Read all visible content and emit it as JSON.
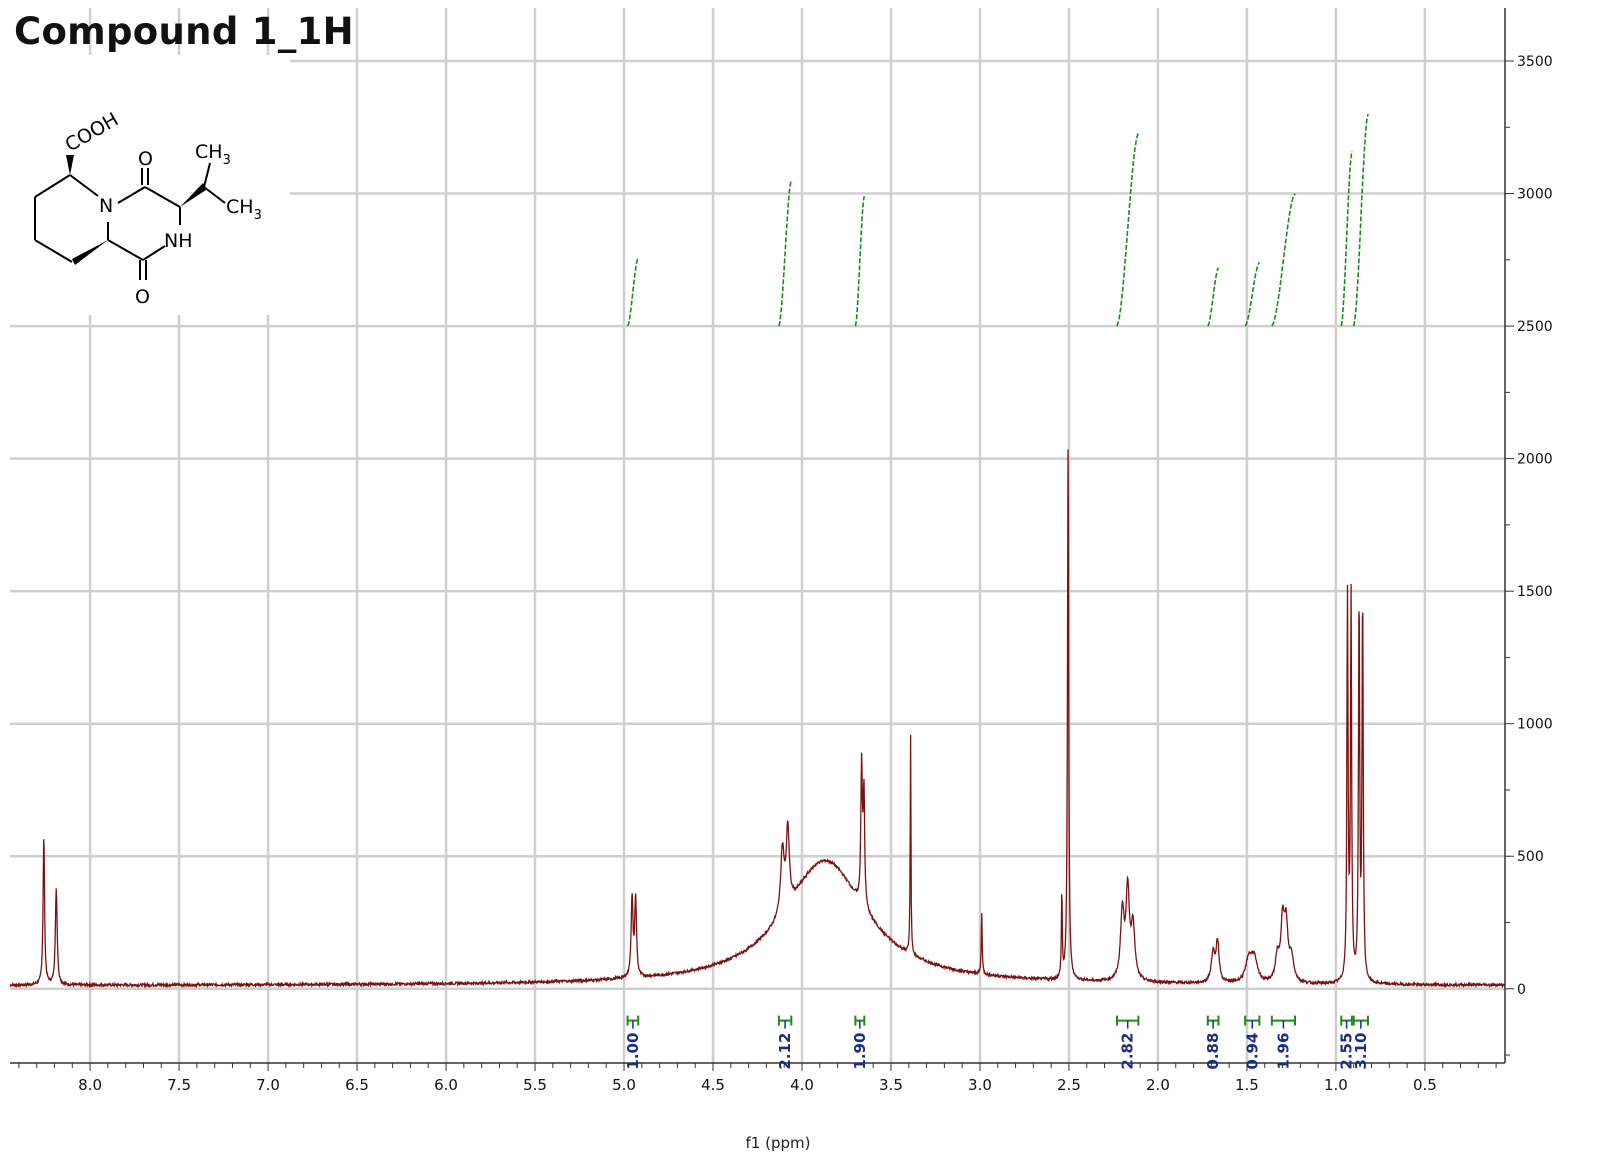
{
  "title": "Compound 1_1H",
  "structure_labels": {
    "acid": "COOH",
    "n": "N",
    "nh": "NH",
    "o_top": "O",
    "o_bottom": "O",
    "ch3_a": "CH",
    "ch3_b": "CH",
    "sub3": "3"
  },
  "colors": {
    "spectrum": "#7a1212",
    "integral": "#1e8a1e",
    "integral_label": "#1a2b8c",
    "grid": "#cfcfcf",
    "axis": "#333333"
  },
  "chart_data": {
    "type": "line",
    "title": "Compound 1_1H",
    "xlabel": "f1 (ppm)",
    "ylabel": "",
    "xlim": [
      8.45,
      0.05
    ],
    "ylim": [
      -280,
      3700
    ],
    "x_reversed": true,
    "grid": true,
    "xticks": [
      "8.0",
      "7.5",
      "7.0",
      "6.5",
      "6.0",
      "5.5",
      "5.0",
      "4.5",
      "4.0",
      "3.5",
      "3.0",
      "2.5",
      "2.0",
      "1.5",
      "1.0",
      "0.5"
    ],
    "yticks": [
      "3500",
      "3000",
      "2500",
      "2000",
      "1500",
      "1000",
      "500",
      "0"
    ],
    "series": [
      {
        "baseline": 12,
        "peaks": [
          {
            "ppm": 8.26,
            "height": 560,
            "width": 0.005
          },
          {
            "ppm": 8.19,
            "height": 360,
            "width": 0.006
          },
          {
            "ppm": 4.955,
            "height": 300,
            "width": 0.006
          },
          {
            "ppm": 4.935,
            "height": 295,
            "width": 0.006
          },
          {
            "ppm": 4.11,
            "height": 240,
            "width": 0.012
          },
          {
            "ppm": 4.08,
            "height": 290,
            "width": 0.01
          },
          {
            "ppm": 3.87,
            "height": 470,
            "width": 0.28
          },
          {
            "ppm": 3.665,
            "height": 520,
            "width": 0.005
          },
          {
            "ppm": 3.652,
            "height": 420,
            "width": 0.005
          },
          {
            "ppm": 3.39,
            "height": 830,
            "width": 0.0025
          },
          {
            "ppm": 2.99,
            "height": 235,
            "width": 0.003
          },
          {
            "ppm": 2.54,
            "height": 320,
            "width": 0.003
          },
          {
            "ppm": 2.505,
            "height": 2040,
            "width": 0.004
          },
          {
            "ppm": 2.2,
            "height": 250,
            "width": 0.012
          },
          {
            "ppm": 2.17,
            "height": 330,
            "width": 0.012
          },
          {
            "ppm": 2.14,
            "height": 200,
            "width": 0.012
          },
          {
            "ppm": 1.69,
            "height": 110,
            "width": 0.012
          },
          {
            "ppm": 1.665,
            "height": 150,
            "width": 0.01
          },
          {
            "ppm": 1.49,
            "height": 85,
            "width": 0.02
          },
          {
            "ppm": 1.46,
            "height": 90,
            "width": 0.02
          },
          {
            "ppm": 1.33,
            "height": 90,
            "width": 0.012
          },
          {
            "ppm": 1.3,
            "height": 220,
            "width": 0.012
          },
          {
            "ppm": 1.28,
            "height": 200,
            "width": 0.012
          },
          {
            "ppm": 1.25,
            "height": 90,
            "width": 0.015
          },
          {
            "ppm": 0.935,
            "height": 1440,
            "width": 0.004
          },
          {
            "ppm": 0.915,
            "height": 1440,
            "width": 0.004
          },
          {
            "ppm": 0.87,
            "height": 1420,
            "width": 0.004
          },
          {
            "ppm": 0.85,
            "height": 1430,
            "width": 0.004
          }
        ]
      }
    ],
    "integrals": [
      {
        "from": 4.98,
        "to": 4.92,
        "value": "1.00",
        "y_start": 2500,
        "y_end": 2760
      },
      {
        "from": 4.13,
        "to": 4.06,
        "value": "2.12",
        "y_start": 2500,
        "y_end": 3050
      },
      {
        "from": 3.7,
        "to": 3.65,
        "value": "1.90",
        "y_start": 2500,
        "y_end": 2990
      },
      {
        "from": 2.23,
        "to": 2.11,
        "value": "2.82",
        "y_start": 2500,
        "y_end": 3230
      },
      {
        "from": 1.72,
        "to": 1.66,
        "value": "0.88",
        "y_start": 2500,
        "y_end": 2720
      },
      {
        "from": 1.51,
        "to": 1.43,
        "value": "0.94",
        "y_start": 2500,
        "y_end": 2740
      },
      {
        "from": 1.36,
        "to": 1.23,
        "value": "1.96",
        "y_start": 2500,
        "y_end": 3000
      },
      {
        "from": 0.97,
        "to": 0.91,
        "value": "2.55",
        "y_start": 2500,
        "y_end": 3160
      },
      {
        "from": 0.9,
        "to": 0.82,
        "value": "3.10",
        "y_start": 2500,
        "y_end": 3300
      }
    ]
  }
}
